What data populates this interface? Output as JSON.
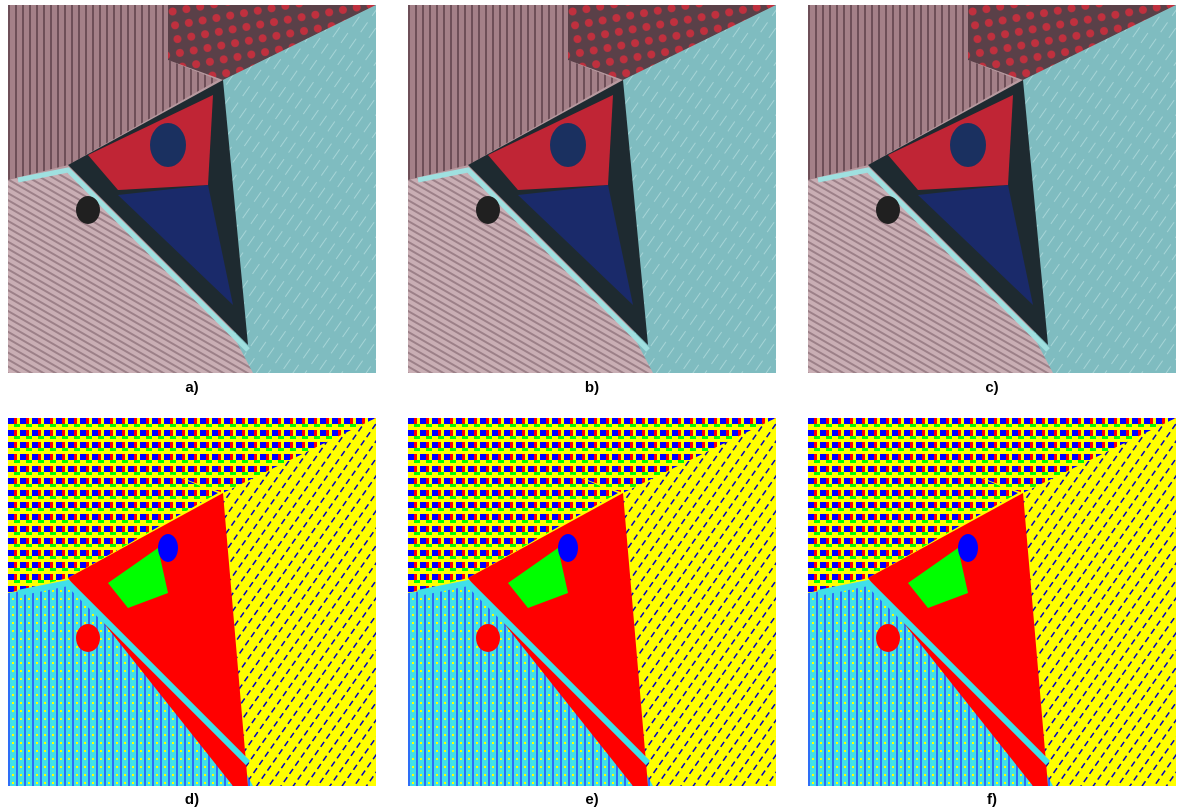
{
  "figure": {
    "panels": [
      {
        "label": "a)"
      },
      {
        "label": "b)"
      },
      {
        "label": "c)"
      },
      {
        "label": "d)"
      },
      {
        "label": "e)"
      },
      {
        "label": "f)"
      }
    ]
  }
}
